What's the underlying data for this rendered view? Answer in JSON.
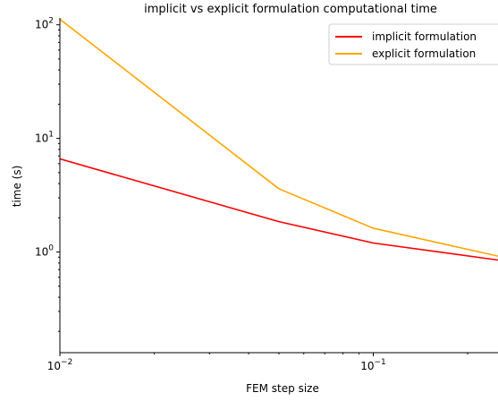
{
  "chart_data": {
    "type": "line",
    "title": "implicit vs explicit formulation computational time",
    "xlabel": "FEM step size",
    "ylabel": "time (s)",
    "x_scale": "log",
    "y_scale": "log",
    "xlim": [
      0.01,
      0.25
    ],
    "ylim": [
      0.13,
      115
    ],
    "grid": false,
    "legend_position": "top-right",
    "x_ticks": [
      {
        "value": 0.01,
        "base": "10",
        "exp": "−2"
      },
      {
        "value": 0.1,
        "base": "10",
        "exp": "−1"
      }
    ],
    "y_ticks": [
      {
        "value": 1,
        "base": "10",
        "exp": "0"
      },
      {
        "value": 10,
        "base": "10",
        "exp": "1"
      },
      {
        "value": 100,
        "base": "10",
        "exp": "2"
      }
    ],
    "x": [
      0.01,
      0.05,
      0.1,
      0.25
    ],
    "series": [
      {
        "name": "implicit formulation",
        "color": "#ff0000",
        "values": [
          6.6,
          1.85,
          1.2,
          0.85
        ]
      },
      {
        "name": "explicit formulation",
        "color": "#ffa500",
        "values": [
          112,
          3.6,
          1.62,
          0.92
        ]
      }
    ]
  }
}
